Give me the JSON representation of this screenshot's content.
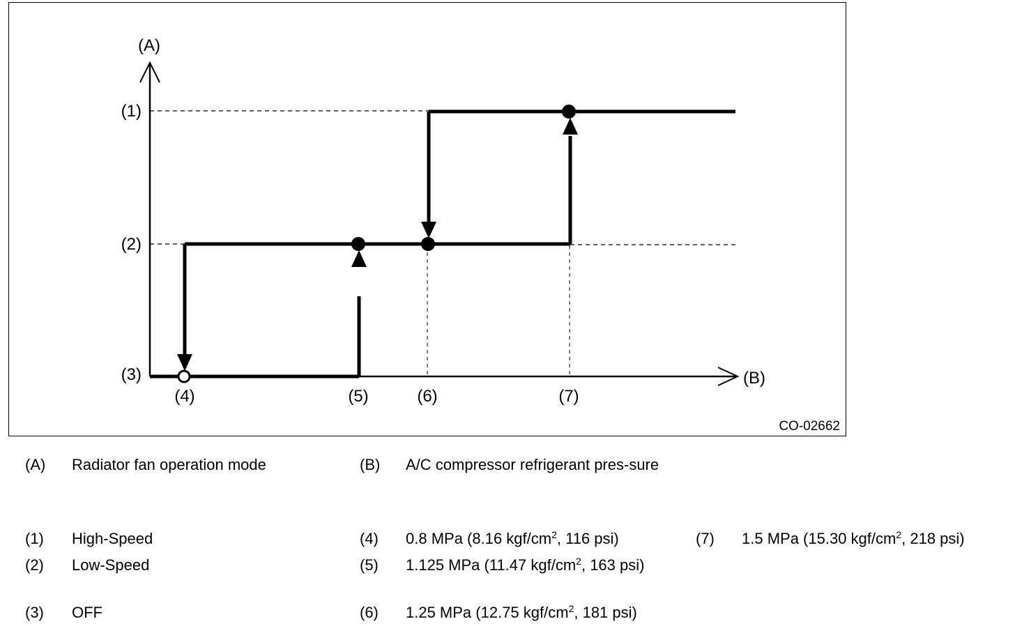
{
  "figure": {
    "axis_y": "(A)",
    "axis_x": "(B)",
    "levels": [
      "(1)",
      "(2)",
      "(3)"
    ],
    "points": [
      "(4)",
      "(5)",
      "(6)",
      "(7)"
    ],
    "code": "CO-02662"
  },
  "legend": {
    "A": {
      "key": "(A)",
      "text": "Radiator fan operation mode"
    },
    "B": {
      "key": "(B)",
      "text": "A/C compressor refrigerant pres-sure"
    },
    "1": {
      "key": "(1)",
      "text": "High-Speed"
    },
    "2": {
      "key": "(2)",
      "text": "Low-Speed"
    },
    "3": {
      "key": "(3)",
      "text": "OFF"
    },
    "4": {
      "key": "(4)",
      "pre": "0.8 MPa (8.16 kgf/cm",
      "sup": "2",
      "post": ", 116 psi)"
    },
    "5": {
      "key": "(5)",
      "pre": "1.125 MPa (11.47 kgf/cm",
      "sup": "2",
      "post": ", 163 psi)"
    },
    "6": {
      "key": "(6)",
      "pre": "1.25 MPa (12.75 kgf/cm",
      "sup": "2",
      "post": ", 181 psi)"
    },
    "7": {
      "key": "(7)",
      "pre": "1.5 MPa (15.30 kgf/cm",
      "sup": "2",
      "post": ", 218 psi)"
    }
  }
}
